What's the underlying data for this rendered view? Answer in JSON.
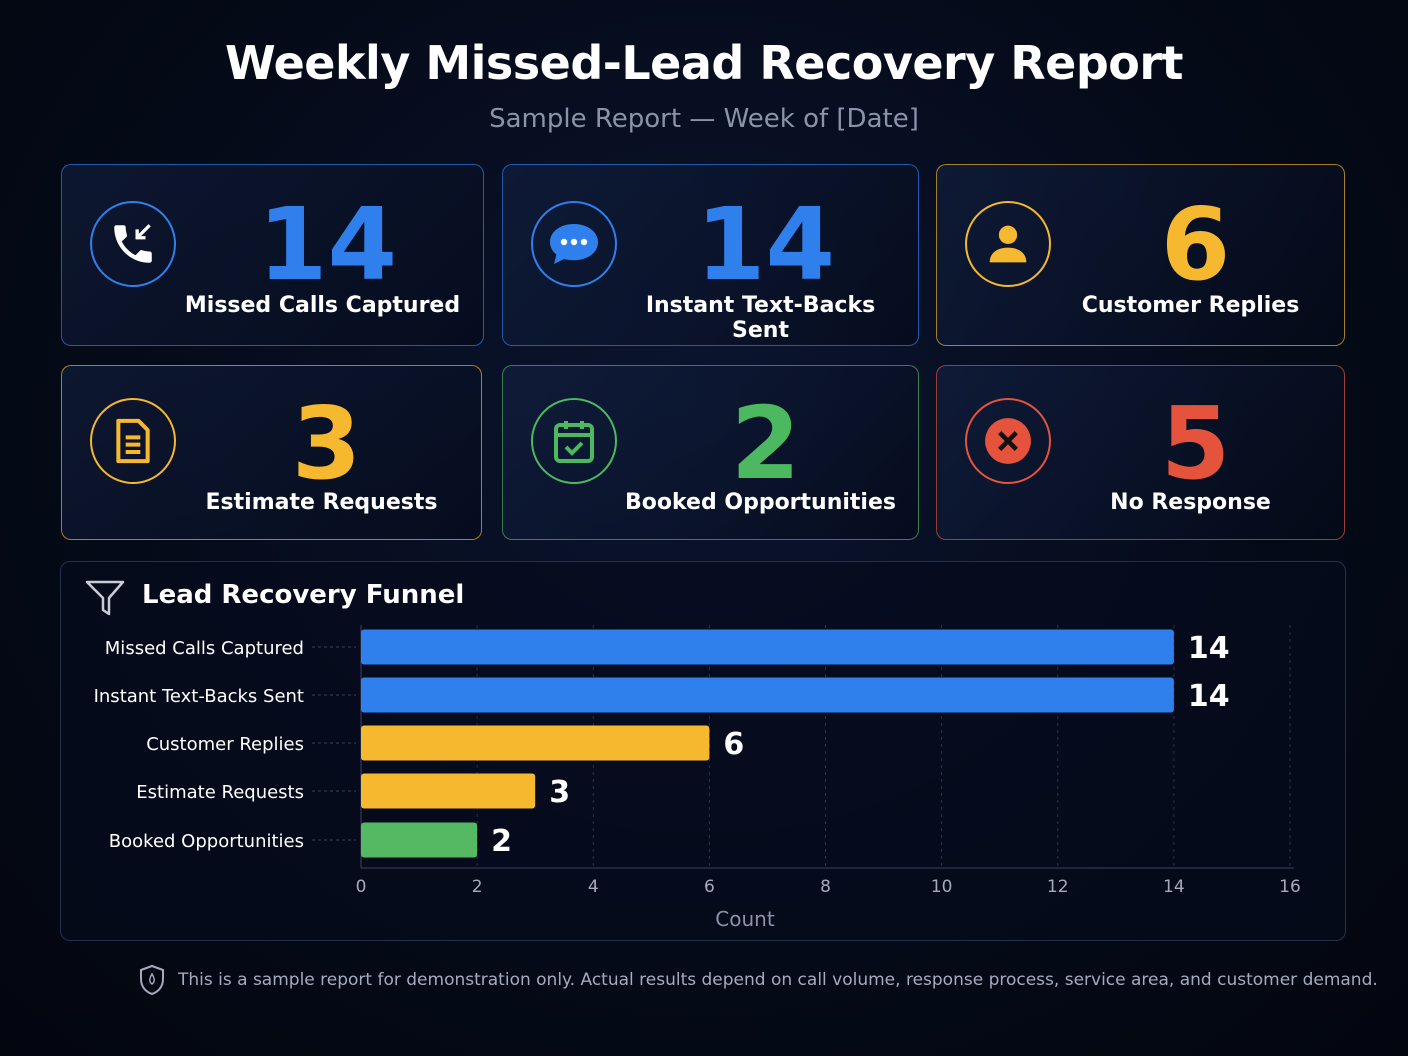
{
  "header": {
    "title": "Weekly Missed-Lead Recovery Report",
    "subtitle": "Sample Report — Week of [Date]"
  },
  "cards": [
    {
      "value": "14",
      "label": "Missed Calls Captured",
      "icon": "phone-incoming-icon",
      "color": "#2f80ed"
    },
    {
      "value": "14",
      "label": "Instant Text-Backs Sent",
      "icon": "chat-bubble-icon",
      "color": "#2f80ed"
    },
    {
      "value": "6",
      "label": "Customer Replies",
      "icon": "user-icon",
      "color": "#f5b82e"
    },
    {
      "value": "3",
      "label": "Estimate Requests",
      "icon": "document-icon",
      "color": "#f5b82e"
    },
    {
      "value": "2",
      "label": "Booked Opportunities",
      "icon": "calendar-check-icon",
      "color": "#4cb860"
    },
    {
      "value": "5",
      "label": "No Response",
      "icon": "x-circle-icon",
      "color": "#e5533d"
    }
  ],
  "chart_data": {
    "type": "bar",
    "orientation": "horizontal",
    "title": "Lead Recovery Funnel",
    "categories": [
      "Missed Calls Captured",
      "Instant Text-Backs Sent",
      "Customer Replies",
      "Estimate Requests",
      "Booked Opportunities"
    ],
    "values": [
      14,
      14,
      6,
      3,
      2
    ],
    "colors": [
      "#2f80ed",
      "#2f80ed",
      "#f5b82e",
      "#f5b82e",
      "#55b862"
    ],
    "xlabel": "Count",
    "xlim": [
      0,
      16
    ],
    "xticks": [
      "0",
      "2",
      "4",
      "6",
      "8",
      "10",
      "12",
      "14",
      "16"
    ],
    "grid": true
  },
  "footer": {
    "note": "This is a sample report for demonstration only. Actual results depend on call volume, response process, service area, and customer demand.",
    "icon": "shield-icon"
  }
}
